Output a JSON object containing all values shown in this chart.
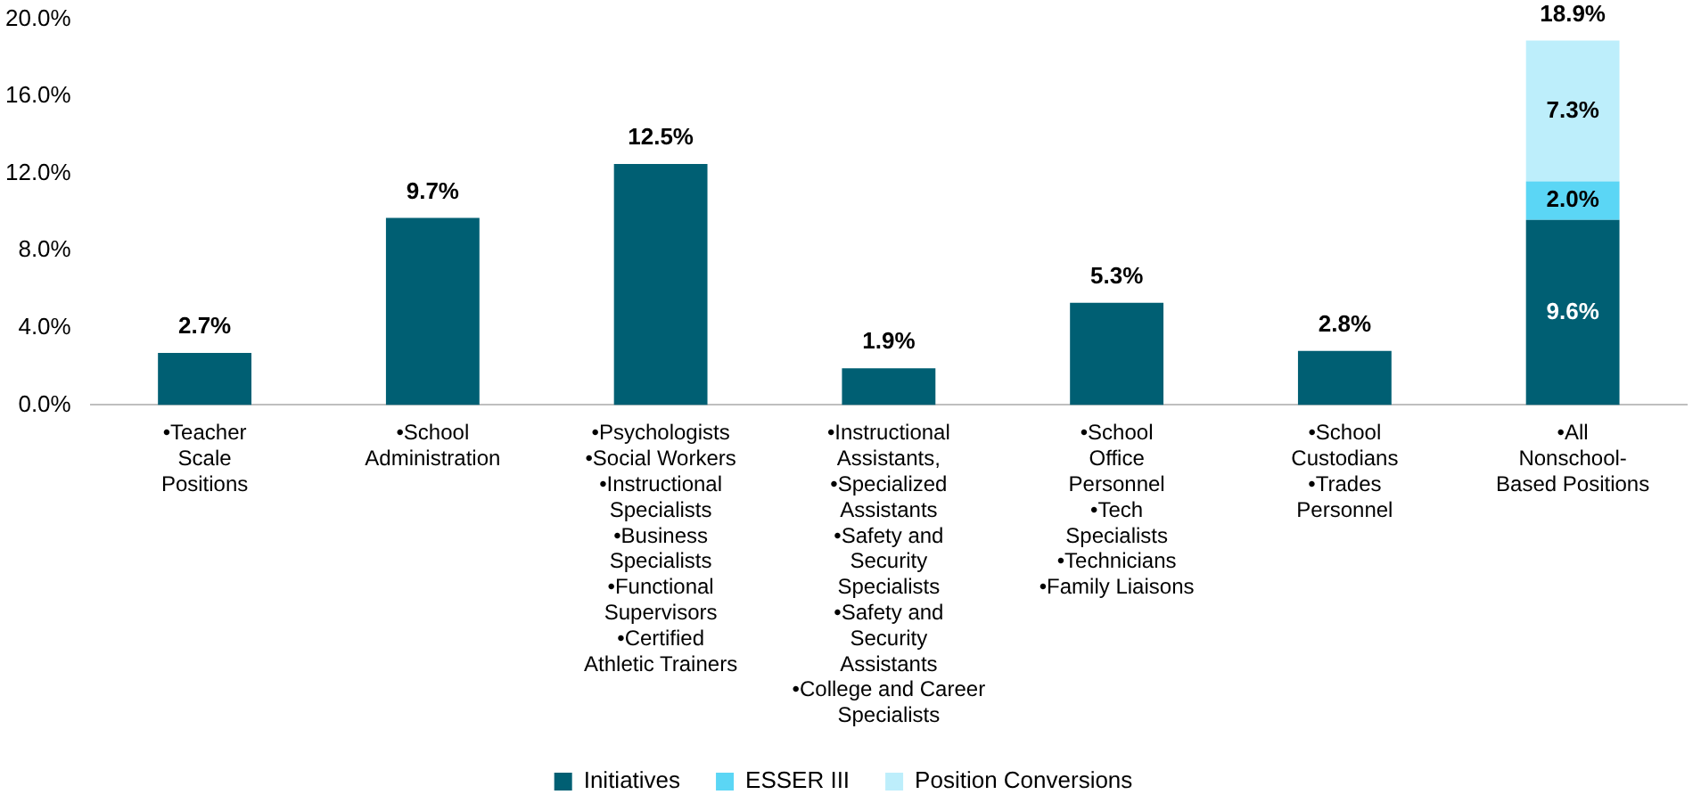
{
  "chart_data": {
    "type": "bar",
    "stacked": true,
    "categories": [
      "•Teacher\nScale\nPositions",
      "•School\nAdministration",
      "•Psychologists\n•Social Workers\n•Instructional\nSpecialists\n•Business\nSpecialists\n•Functional\nSupervisors\n•Certified\nAthletic Trainers",
      "•Instructional\nAssistants,\n•Specialized\nAssistants\n•Safety and\nSecurity\nSpecialists\n•Safety and\nSecurity\nAssistants\n•College and Career\nSpecialists",
      "•School\nOffice\nPersonnel\n•Tech\nSpecialists\n•Technicians\n•Family Liaisons",
      "•School\nCustodians\n•Trades\nPersonnel",
      "•All\nNonschool-\nBased Positions"
    ],
    "series": [
      {
        "name": "Initiatives",
        "color": "#005f73",
        "values": [
          2.7,
          9.7,
          12.5,
          1.9,
          5.3,
          2.8,
          9.6
        ],
        "value_labels": [
          "2.7%",
          "9.7%",
          "12.5%",
          "1.9%",
          "5.3%",
          "2.8%",
          "9.6%"
        ]
      },
      {
        "name": "ESSER III",
        "color": "#5bd6f5",
        "values": [
          null,
          null,
          null,
          null,
          null,
          null,
          2.0
        ],
        "value_labels": [
          null,
          null,
          null,
          null,
          null,
          null,
          "2.0%"
        ]
      },
      {
        "name": "Position Conversions",
        "color": "#bdeefb",
        "values": [
          null,
          null,
          null,
          null,
          null,
          null,
          7.3
        ],
        "value_labels": [
          null,
          null,
          null,
          null,
          null,
          null,
          "7.3%"
        ]
      }
    ],
    "totals": [
      null,
      null,
      null,
      null,
      null,
      null,
      "18.9%"
    ],
    "ylim": [
      0,
      20
    ],
    "yticks": [
      {
        "value": 0,
        "label": "0.0%"
      },
      {
        "value": 4,
        "label": "4.0%"
      },
      {
        "value": 8,
        "label": "8.0%"
      },
      {
        "value": 12,
        "label": "12.0%"
      },
      {
        "value": 16,
        "label": "16.0%"
      },
      {
        "value": 20,
        "label": "20.0%"
      }
    ],
    "grid": false,
    "legend": "bottom"
  }
}
